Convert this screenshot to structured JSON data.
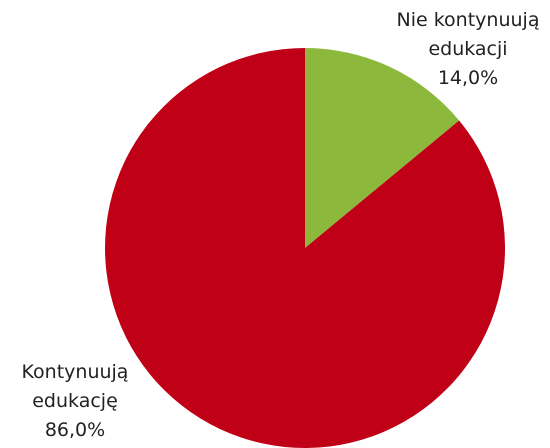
{
  "chart_data": {
    "type": "pie",
    "categories": [
      "Nie kontynuują edukacji",
      "Kontynuują edukację"
    ],
    "values": [
      14.0,
      86.0
    ],
    "value_labels": [
      "14,0%",
      "86,0%"
    ],
    "colors": [
      "#8cb83c",
      "#c00016"
    ]
  }
}
